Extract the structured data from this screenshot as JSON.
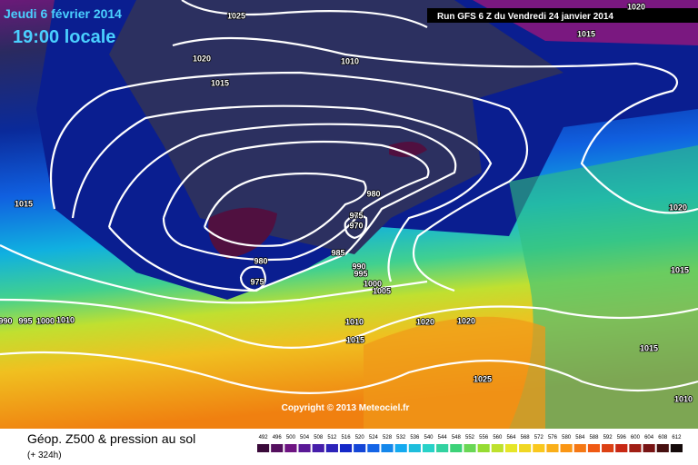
{
  "header": {
    "date": "Jeudi 6 février 2014",
    "time": "19:00 locale",
    "run": "Run GFS 6 Z du Vendredi 24 janvier 2014"
  },
  "copyright": "Copyright © 2013 Meteociel.fr",
  "footer": {
    "title": "Géop. Z500 & pression au sol",
    "lead": "(+ 324h)"
  },
  "legend": {
    "labels": [
      "492",
      "496",
      "500",
      "504",
      "508",
      "512",
      "516",
      "520",
      "524",
      "528",
      "532",
      "536",
      "540",
      "544",
      "548",
      "552",
      "556",
      "560",
      "564",
      "568",
      "572",
      "576",
      "580",
      "584",
      "588",
      "592",
      "596",
      "600",
      "604",
      "608",
      "612"
    ]
  },
  "isobar_labels": [
    "1025",
    "1020",
    "1015",
    "1010",
    "1020",
    "1015",
    "1015",
    "980",
    "975",
    "970",
    "985",
    "980",
    "975",
    "990",
    "995",
    "1000",
    "1005",
    "1020",
    "1015",
    "1010",
    "1020",
    "1020",
    "1015",
    "1025",
    "1015",
    "1010",
    "990",
    "995",
    "1000",
    "1010"
  ]
}
